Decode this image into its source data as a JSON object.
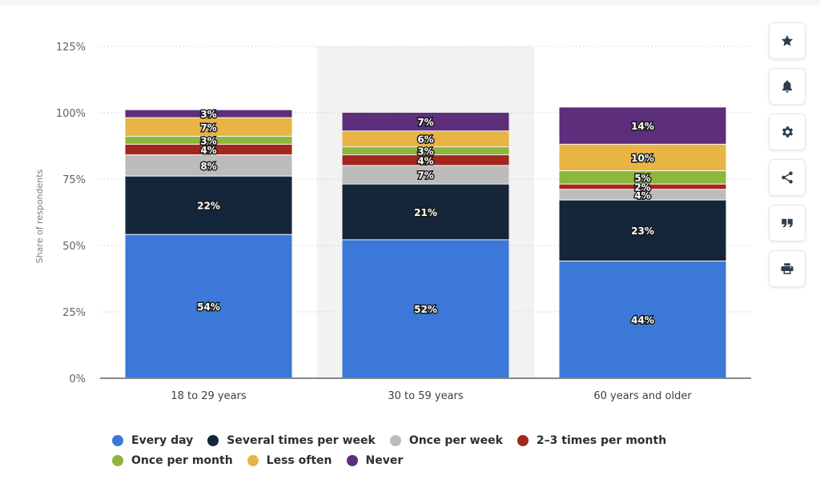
{
  "chart_data": {
    "type": "bar",
    "stacked": true,
    "categories": [
      "18 to 29 years",
      "30 to 59 years",
      "60 years and older"
    ],
    "series": [
      {
        "name": "Every day",
        "color": "#3b78d8",
        "values": [
          54,
          52,
          44
        ]
      },
      {
        "name": "Several times per week",
        "color": "#15263b",
        "values": [
          22,
          21,
          23
        ]
      },
      {
        "name": "Once per week",
        "color": "#bcbcbc",
        "values": [
          8,
          7,
          4
        ]
      },
      {
        "name": "2-3 times per month",
        "color": "#a3261f",
        "values": [
          4,
          4,
          2
        ]
      },
      {
        "name": "Once per month",
        "color": "#8cb63c",
        "values": [
          3,
          3,
          5
        ]
      },
      {
        "name": "Less often",
        "color": "#e8b443",
        "values": [
          7,
          6,
          10
        ]
      },
      {
        "name": "Never",
        "color": "#5c2e7c",
        "values": [
          3,
          7,
          14
        ]
      }
    ],
    "ylabel": "Share of respondents",
    "xlabel": "",
    "ylim": [
      0,
      125
    ],
    "yticks": [
      "0%",
      "25%",
      "50%",
      "75%",
      "100%",
      "125%"
    ],
    "ytick_values": [
      0,
      25,
      50,
      75,
      100,
      125
    ],
    "grid": true,
    "highlighted_category": 1,
    "legend_position": "bottom-left"
  },
  "legend": {
    "row1": [
      "Every day",
      "Several times per week",
      "Once per week",
      "2–3 times per month"
    ],
    "row2": [
      "Once per month",
      "Less often",
      "Never"
    ]
  },
  "toolbar": {
    "icons": [
      "star-icon",
      "bell-icon",
      "gear-icon",
      "share-icon",
      "quote-icon",
      "print-icon"
    ]
  }
}
